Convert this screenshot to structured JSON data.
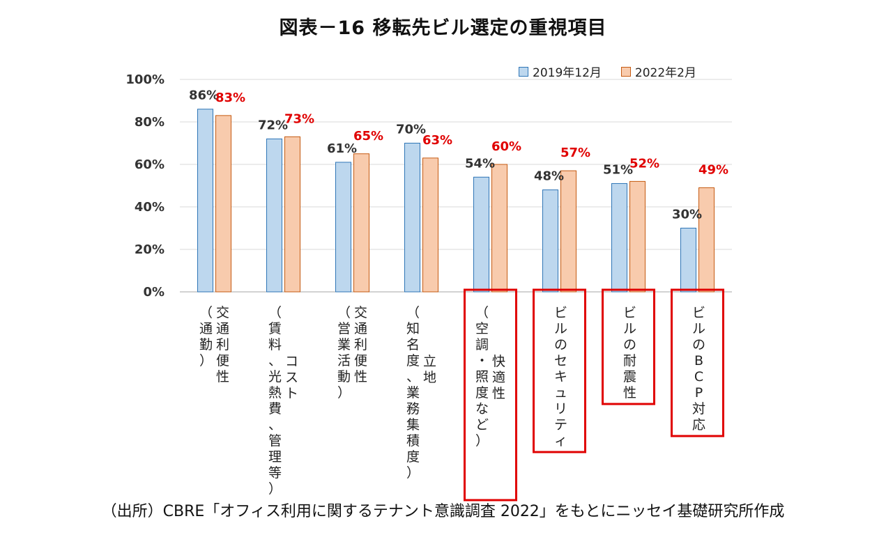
{
  "title": "図表－16 移転先ビル選定の重視項目",
  "source_note": "（出所）CBRE「オフィス利用に関するテナント意識調査 2022」をもとにニッセイ基礎研究所作成",
  "colors": {
    "series1_fill": "#bdd7ee",
    "series1_stroke": "#2e75b6",
    "series2_fill": "#f8cbad",
    "series2_stroke": "#c55a11",
    "series2_label": "#e00000",
    "highlight_box": "#e00000",
    "grid": "#d9d9d9"
  },
  "chart_data": {
    "type": "bar",
    "ylim": [
      0,
      100
    ],
    "y_ticks": [
      "0%",
      "20%",
      "40%",
      "60%",
      "80%",
      "100%"
    ],
    "y_tick_values": [
      0,
      20,
      40,
      60,
      80,
      100
    ],
    "grid": true,
    "legend_position": "top-right",
    "categories": [
      {
        "main": "交通利便性",
        "sub": "（通勤）",
        "highlight": false
      },
      {
        "main": "コスト",
        "sub": "（賃料、光熱費、管理等）",
        "highlight": false
      },
      {
        "main": "交通利便性",
        "sub": "（営業活動）",
        "highlight": false
      },
      {
        "main": "立地",
        "sub": "（知名度、業務集積度）",
        "highlight": false
      },
      {
        "main": "快適性",
        "sub": "（空調・照度など）",
        "highlight": true
      },
      {
        "main": "ビルのセキュリティ",
        "sub": "",
        "highlight": true
      },
      {
        "main": "ビルの耐震性",
        "sub": "",
        "highlight": true
      },
      {
        "main": "ビルのBCP対応",
        "sub": "",
        "highlight": true
      }
    ],
    "series": [
      {
        "name": "2019年12月",
        "values": [
          86,
          72,
          61,
          70,
          54,
          48,
          51,
          30
        ],
        "labels": [
          "86%",
          "72%",
          "61%",
          "70%",
          "54%",
          "48%",
          "51%",
          "30%"
        ]
      },
      {
        "name": "2022年2月",
        "values": [
          83,
          73,
          65,
          63,
          60,
          57,
          52,
          49
        ],
        "labels": [
          "83%",
          "73%",
          "65%",
          "63%",
          "60%",
          "57%",
          "52%",
          "49%"
        ]
      }
    ]
  }
}
